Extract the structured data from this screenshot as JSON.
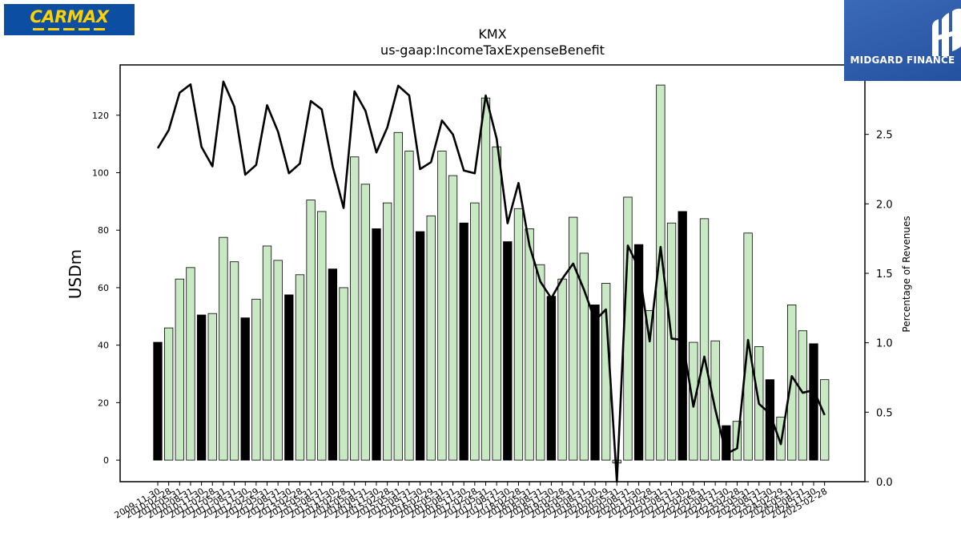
{
  "logos": {
    "left_text": "CARMAX",
    "right_text": "MIDGARD FINANCE"
  },
  "chart_data": {
    "type": "bar",
    "title": "KMX",
    "subtitle": "us-gaap:IncomeTaxExpenseBenefit",
    "ylabel": "USDm",
    "y2label": "Percentage of Revenues",
    "ylim": [
      -7.5,
      137.5
    ],
    "y2lim": [
      0.0,
      3.0
    ],
    "yticks": [
      0,
      20,
      40,
      60,
      80,
      100,
      120
    ],
    "y2ticks": [
      0.0,
      0.5,
      1.0,
      1.5,
      2.0,
      2.5
    ],
    "categories": [
      "2009-11-30",
      "2010-02-28",
      "2010-05-31",
      "2010-08-31",
      "2010-11-30",
      "2011-02-28",
      "2011-05-31",
      "2011-08-31",
      "2011-11-30",
      "2012-02-29",
      "2012-05-31",
      "2012-08-31",
      "2012-11-30",
      "2013-02-28",
      "2013-05-31",
      "2013-08-31",
      "2013-11-30",
      "2014-02-28",
      "2014-05-31",
      "2014-08-31",
      "2014-11-30",
      "2015-02-28",
      "2015-05-31",
      "2015-08-31",
      "2015-11-30",
      "2016-02-29",
      "2016-05-31",
      "2016-08-31",
      "2016-11-30",
      "2017-02-28",
      "2017-05-31",
      "2017-08-31",
      "2017-11-30",
      "2018-02-28",
      "2018-05-31",
      "2018-08-31",
      "2018-11-30",
      "2019-02-28",
      "2019-05-31",
      "2019-08-31",
      "2019-11-30",
      "2020-02-29",
      "2020-05-31",
      "2020-08-31",
      "2020-11-30",
      "2021-02-28",
      "2021-05-31",
      "2021-08-31",
      "2021-11-30",
      "2022-02-28",
      "2022-05-31",
      "2022-08-31",
      "2022-11-30",
      "2023-02-28",
      "2023-05-31",
      "2023-08-31",
      "2023-11-30",
      "2024-02-29",
      "2024-05-31",
      "2024-08-31",
      "2024-11-30",
      "2025-02-28"
    ],
    "series": [
      {
        "type": "bar",
        "axis": "left",
        "values": [
          41,
          46,
          63,
          67,
          50.5,
          51,
          77.5,
          69,
          49.5,
          56,
          74.5,
          69.5,
          57.5,
          64.5,
          90.5,
          86.5,
          66.5,
          60,
          105.5,
          96,
          80.5,
          89.5,
          114,
          107.5,
          79.5,
          85,
          107.5,
          99,
          82.5,
          89.5,
          126,
          109,
          76,
          87.5,
          80.5,
          68,
          57,
          63,
          84.5,
          72,
          54,
          61.5,
          -1,
          91.5,
          75,
          52,
          130.5,
          82.5,
          86.5,
          41,
          84,
          41.5,
          12,
          13.5,
          79,
          39.5,
          28,
          15,
          54,
          45,
          40.5,
          28
        ],
        "highlight": [
          0,
          4,
          8,
          12,
          16,
          20,
          24,
          28,
          32,
          36,
          40,
          44,
          48,
          52,
          56,
          60
        ],
        "colors": {
          "normal": "#c9e9c4",
          "highlight": "#000000",
          "edge": "#000000"
        }
      },
      {
        "type": "line",
        "axis": "right",
        "values": [
          2.4,
          2.53,
          2.8,
          2.86,
          2.41,
          2.27,
          2.88,
          2.7,
          2.21,
          2.28,
          2.71,
          2.52,
          2.22,
          2.29,
          2.74,
          2.68,
          2.27,
          1.97,
          2.81,
          2.67,
          2.37,
          2.55,
          2.85,
          2.78,
          2.25,
          2.3,
          2.6,
          2.5,
          2.24,
          2.22,
          2.78,
          2.47,
          1.86,
          2.15,
          1.7,
          1.44,
          1.32,
          1.46,
          1.57,
          1.38,
          1.16,
          1.24,
          0.0,
          1.7,
          1.54,
          1.01,
          1.69,
          1.03,
          1.02,
          0.54,
          0.9,
          0.52,
          0.2,
          0.24,
          1.02,
          0.56,
          0.49,
          0.27,
          0.76,
          0.64,
          0.66,
          0.48
        ],
        "color": "#000000"
      }
    ]
  }
}
